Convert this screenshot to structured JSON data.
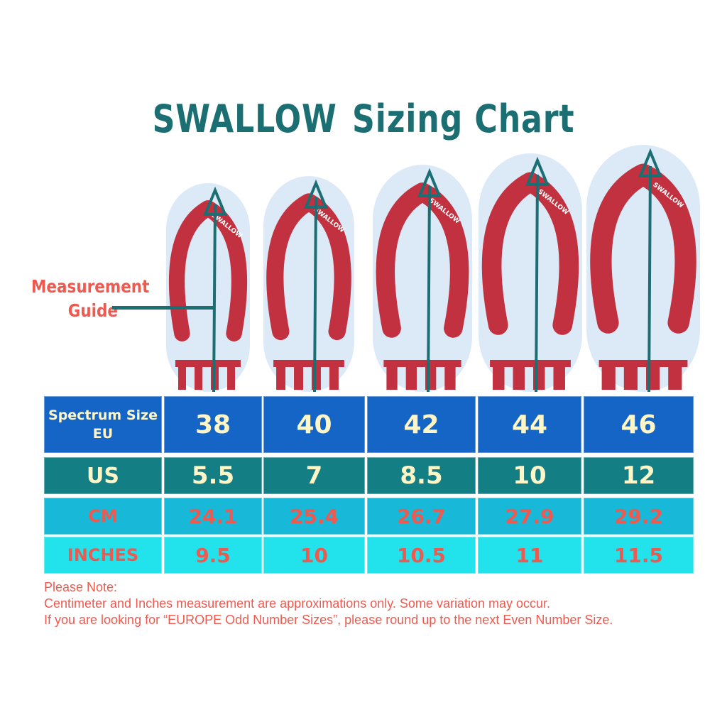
{
  "title": {
    "part1": "SWALLOW",
    "part2": "Sizing Chart"
  },
  "guide": {
    "line1": "Measurement",
    "line2": "Guide"
  },
  "colors": {
    "title": "#1b6e72",
    "accent": "#ee5a4f",
    "eu_row": "#1565c6",
    "us_row": "#137f85",
    "cm_row": "#18b8d8",
    "in_row": "#22e2ec",
    "strap": "#c2313f",
    "sole": "#dce9f7"
  },
  "sandals": [
    {
      "brand": "SWALLOW"
    },
    {
      "brand": "SWALLOW"
    },
    {
      "brand": "SWALLOW"
    },
    {
      "brand": "SWALLOW"
    },
    {
      "brand": "SWALLOW"
    }
  ],
  "chart_data": {
    "type": "table",
    "rows": [
      {
        "label_line1": "Spectrum Size",
        "label_line2": "EU",
        "values": [
          "38",
          "40",
          "42",
          "44",
          "46"
        ]
      },
      {
        "label": "US",
        "values": [
          "5.5",
          "7",
          "8.5",
          "10",
          "12"
        ]
      },
      {
        "label": "CM",
        "values": [
          "24.1",
          "25.4",
          "26.7",
          "27.9",
          "29.2"
        ]
      },
      {
        "label": "INCHES",
        "values": [
          "9.5",
          "10",
          "10.5",
          "11",
          "11.5"
        ]
      }
    ]
  },
  "note": {
    "heading": "Please Note:",
    "line1": "Centimeter and Inches measurement are approximations only. Some variation may occur.",
    "line2": "If you are looking for “EUROPE Odd Number Sizes”, please round up to the next Even Number Size."
  }
}
